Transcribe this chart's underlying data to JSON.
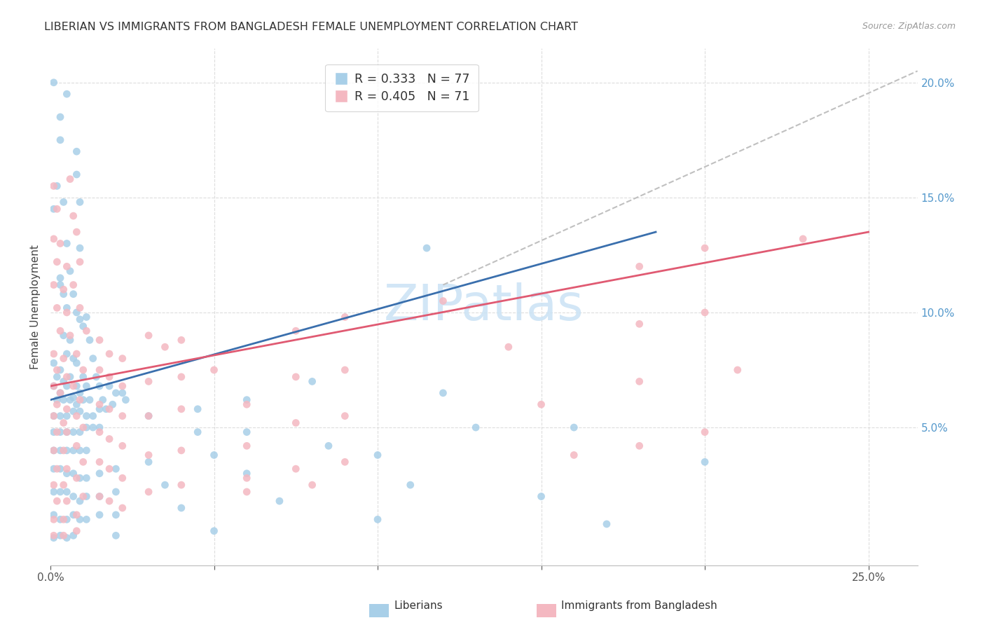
{
  "title": "LIBERIAN VS IMMIGRANTS FROM BANGLADESH FEMALE UNEMPLOYMENT CORRELATION CHART",
  "source": "Source: ZipAtlas.com",
  "ylabel": "Female Unemployment",
  "xlim": [
    0.0,
    0.265
  ],
  "ylim": [
    -0.01,
    0.215
  ],
  "liberian_R": 0.333,
  "liberian_N": 77,
  "bangladesh_R": 0.405,
  "bangladesh_N": 71,
  "liberian_color": "#a8cfe8",
  "bangladesh_color": "#f4b8c1",
  "liberian_trend_color": "#3a6fad",
  "bangladesh_trend_color": "#e05a72",
  "extended_trend_color": "#c0c0c0",
  "watermark_text": "ZIPatlas",
  "watermark_color": "#cde4f5",
  "background_color": "#ffffff",
  "grid_color": "#dddddd",
  "liberian_trend_x": [
    0.0,
    0.185
  ],
  "liberian_trend_y": [
    0.062,
    0.135
  ],
  "bangladesh_trend_x": [
    0.0,
    0.25
  ],
  "bangladesh_trend_y": [
    0.068,
    0.135
  ],
  "extended_trend_x": [
    0.12,
    0.265
  ],
  "extended_trend_y": [
    0.112,
    0.205
  ],
  "liberian_scatter": [
    [
      0.001,
      0.2
    ],
    [
      0.003,
      0.185
    ],
    [
      0.003,
      0.175
    ],
    [
      0.002,
      0.155
    ],
    [
      0.008,
      0.17
    ],
    [
      0.008,
      0.16
    ],
    [
      0.001,
      0.145
    ],
    [
      0.004,
      0.148
    ],
    [
      0.009,
      0.148
    ],
    [
      0.005,
      0.13
    ],
    [
      0.009,
      0.128
    ],
    [
      0.003,
      0.115
    ],
    [
      0.006,
      0.118
    ],
    [
      0.003,
      0.112
    ],
    [
      0.004,
      0.108
    ],
    [
      0.005,
      0.102
    ],
    [
      0.007,
      0.108
    ],
    [
      0.008,
      0.1
    ],
    [
      0.009,
      0.097
    ],
    [
      0.01,
      0.094
    ],
    [
      0.011,
      0.098
    ],
    [
      0.004,
      0.09
    ],
    [
      0.006,
      0.088
    ],
    [
      0.012,
      0.088
    ],
    [
      0.005,
      0.082
    ],
    [
      0.007,
      0.08
    ],
    [
      0.008,
      0.078
    ],
    [
      0.001,
      0.078
    ],
    [
      0.003,
      0.075
    ],
    [
      0.013,
      0.08
    ],
    [
      0.002,
      0.072
    ],
    [
      0.004,
      0.07
    ],
    [
      0.006,
      0.072
    ],
    [
      0.008,
      0.068
    ],
    [
      0.01,
      0.072
    ],
    [
      0.014,
      0.072
    ],
    [
      0.001,
      0.068
    ],
    [
      0.003,
      0.065
    ],
    [
      0.005,
      0.068
    ],
    [
      0.007,
      0.063
    ],
    [
      0.009,
      0.065
    ],
    [
      0.011,
      0.068
    ],
    [
      0.015,
      0.068
    ],
    [
      0.018,
      0.068
    ],
    [
      0.002,
      0.062
    ],
    [
      0.004,
      0.062
    ],
    [
      0.006,
      0.062
    ],
    [
      0.008,
      0.06
    ],
    [
      0.01,
      0.062
    ],
    [
      0.012,
      0.062
    ],
    [
      0.016,
      0.062
    ],
    [
      0.02,
      0.065
    ],
    [
      0.022,
      0.065
    ],
    [
      0.001,
      0.055
    ],
    [
      0.003,
      0.055
    ],
    [
      0.005,
      0.055
    ],
    [
      0.007,
      0.057
    ],
    [
      0.009,
      0.057
    ],
    [
      0.011,
      0.055
    ],
    [
      0.013,
      0.055
    ],
    [
      0.015,
      0.058
    ],
    [
      0.017,
      0.058
    ],
    [
      0.019,
      0.06
    ],
    [
      0.023,
      0.062
    ],
    [
      0.115,
      0.128
    ],
    [
      0.001,
      0.048
    ],
    [
      0.003,
      0.048
    ],
    [
      0.005,
      0.048
    ],
    [
      0.007,
      0.048
    ],
    [
      0.009,
      0.048
    ],
    [
      0.011,
      0.05
    ],
    [
      0.013,
      0.05
    ],
    [
      0.015,
      0.05
    ],
    [
      0.03,
      0.055
    ],
    [
      0.045,
      0.058
    ],
    [
      0.06,
      0.062
    ],
    [
      0.08,
      0.07
    ],
    [
      0.001,
      0.04
    ],
    [
      0.003,
      0.04
    ],
    [
      0.005,
      0.04
    ],
    [
      0.007,
      0.04
    ],
    [
      0.009,
      0.04
    ],
    [
      0.011,
      0.04
    ],
    [
      0.045,
      0.048
    ],
    [
      0.06,
      0.048
    ],
    [
      0.12,
      0.065
    ],
    [
      0.001,
      0.032
    ],
    [
      0.003,
      0.032
    ],
    [
      0.005,
      0.03
    ],
    [
      0.007,
      0.03
    ],
    [
      0.009,
      0.028
    ],
    [
      0.011,
      0.028
    ],
    [
      0.015,
      0.03
    ],
    [
      0.02,
      0.032
    ],
    [
      0.03,
      0.035
    ],
    [
      0.05,
      0.038
    ],
    [
      0.085,
      0.042
    ],
    [
      0.13,
      0.05
    ],
    [
      0.001,
      0.022
    ],
    [
      0.003,
      0.022
    ],
    [
      0.005,
      0.022
    ],
    [
      0.007,
      0.02
    ],
    [
      0.009,
      0.018
    ],
    [
      0.011,
      0.02
    ],
    [
      0.015,
      0.02
    ],
    [
      0.02,
      0.022
    ],
    [
      0.035,
      0.025
    ],
    [
      0.06,
      0.03
    ],
    [
      0.1,
      0.038
    ],
    [
      0.16,
      0.05
    ],
    [
      0.001,
      0.012
    ],
    [
      0.003,
      0.01
    ],
    [
      0.005,
      0.01
    ],
    [
      0.007,
      0.012
    ],
    [
      0.009,
      0.01
    ],
    [
      0.011,
      0.01
    ],
    [
      0.015,
      0.012
    ],
    [
      0.02,
      0.012
    ],
    [
      0.04,
      0.015
    ],
    [
      0.07,
      0.018
    ],
    [
      0.11,
      0.025
    ],
    [
      0.2,
      0.035
    ],
    [
      0.001,
      0.002
    ],
    [
      0.003,
      0.003
    ],
    [
      0.005,
      0.002
    ],
    [
      0.007,
      0.003
    ],
    [
      0.02,
      0.003
    ],
    [
      0.05,
      0.005
    ],
    [
      0.1,
      0.01
    ],
    [
      0.15,
      0.02
    ],
    [
      0.005,
      0.195
    ],
    [
      0.17,
      0.008
    ]
  ],
  "bangladesh_scatter": [
    [
      0.001,
      0.155
    ],
    [
      0.006,
      0.158
    ],
    [
      0.002,
      0.145
    ],
    [
      0.007,
      0.142
    ],
    [
      0.001,
      0.132
    ],
    [
      0.003,
      0.13
    ],
    [
      0.008,
      0.135
    ],
    [
      0.002,
      0.122
    ],
    [
      0.005,
      0.12
    ],
    [
      0.009,
      0.122
    ],
    [
      0.001,
      0.112
    ],
    [
      0.004,
      0.11
    ],
    [
      0.007,
      0.112
    ],
    [
      0.002,
      0.102
    ],
    [
      0.005,
      0.1
    ],
    [
      0.009,
      0.102
    ],
    [
      0.003,
      0.092
    ],
    [
      0.006,
      0.09
    ],
    [
      0.011,
      0.092
    ],
    [
      0.001,
      0.082
    ],
    [
      0.004,
      0.08
    ],
    [
      0.008,
      0.082
    ],
    [
      0.002,
      0.075
    ],
    [
      0.005,
      0.072
    ],
    [
      0.01,
      0.075
    ],
    [
      0.001,
      0.068
    ],
    [
      0.003,
      0.065
    ],
    [
      0.007,
      0.068
    ],
    [
      0.002,
      0.06
    ],
    [
      0.005,
      0.058
    ],
    [
      0.009,
      0.062
    ],
    [
      0.001,
      0.055
    ],
    [
      0.004,
      0.052
    ],
    [
      0.008,
      0.055
    ],
    [
      0.002,
      0.048
    ],
    [
      0.005,
      0.048
    ],
    [
      0.01,
      0.05
    ],
    [
      0.001,
      0.04
    ],
    [
      0.004,
      0.04
    ],
    [
      0.008,
      0.042
    ],
    [
      0.002,
      0.032
    ],
    [
      0.005,
      0.032
    ],
    [
      0.01,
      0.035
    ],
    [
      0.001,
      0.025
    ],
    [
      0.004,
      0.025
    ],
    [
      0.008,
      0.028
    ],
    [
      0.002,
      0.018
    ],
    [
      0.005,
      0.018
    ],
    [
      0.01,
      0.02
    ],
    [
      0.001,
      0.01
    ],
    [
      0.004,
      0.01
    ],
    [
      0.008,
      0.012
    ],
    [
      0.001,
      0.003
    ],
    [
      0.004,
      0.003
    ],
    [
      0.008,
      0.005
    ],
    [
      0.015,
      0.088
    ],
    [
      0.018,
      0.082
    ],
    [
      0.022,
      0.08
    ],
    [
      0.015,
      0.075
    ],
    [
      0.018,
      0.072
    ],
    [
      0.022,
      0.068
    ],
    [
      0.015,
      0.06
    ],
    [
      0.018,
      0.058
    ],
    [
      0.022,
      0.055
    ],
    [
      0.015,
      0.048
    ],
    [
      0.018,
      0.045
    ],
    [
      0.022,
      0.042
    ],
    [
      0.015,
      0.035
    ],
    [
      0.018,
      0.032
    ],
    [
      0.022,
      0.028
    ],
    [
      0.015,
      0.02
    ],
    [
      0.018,
      0.018
    ],
    [
      0.022,
      0.015
    ],
    [
      0.03,
      0.09
    ],
    [
      0.035,
      0.085
    ],
    [
      0.04,
      0.088
    ],
    [
      0.03,
      0.07
    ],
    [
      0.04,
      0.072
    ],
    [
      0.05,
      0.075
    ],
    [
      0.03,
      0.055
    ],
    [
      0.04,
      0.058
    ],
    [
      0.06,
      0.06
    ],
    [
      0.03,
      0.038
    ],
    [
      0.04,
      0.04
    ],
    [
      0.06,
      0.042
    ],
    [
      0.03,
      0.022
    ],
    [
      0.04,
      0.025
    ],
    [
      0.06,
      0.028
    ],
    [
      0.075,
      0.092
    ],
    [
      0.09,
      0.098
    ],
    [
      0.12,
      0.105
    ],
    [
      0.075,
      0.072
    ],
    [
      0.09,
      0.075
    ],
    [
      0.14,
      0.085
    ],
    [
      0.075,
      0.052
    ],
    [
      0.09,
      0.055
    ],
    [
      0.15,
      0.06
    ],
    [
      0.075,
      0.032
    ],
    [
      0.09,
      0.035
    ],
    [
      0.16,
      0.038
    ],
    [
      0.18,
      0.12
    ],
    [
      0.2,
      0.128
    ],
    [
      0.23,
      0.132
    ],
    [
      0.18,
      0.095
    ],
    [
      0.2,
      0.1
    ],
    [
      0.18,
      0.07
    ],
    [
      0.21,
      0.075
    ],
    [
      0.18,
      0.042
    ],
    [
      0.2,
      0.048
    ],
    [
      0.06,
      0.022
    ],
    [
      0.08,
      0.025
    ]
  ]
}
